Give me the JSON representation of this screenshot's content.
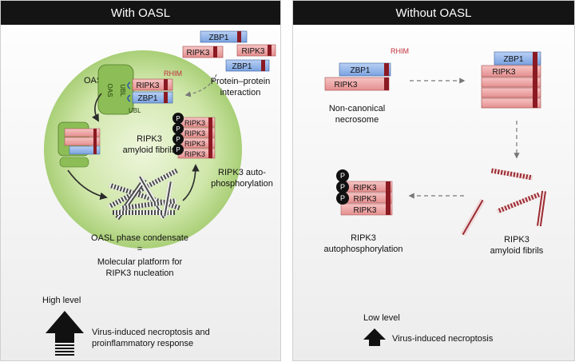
{
  "left": {
    "title": "With OASL",
    "zbp1": "ZBP1",
    "ripk3": "RIPK3",
    "oasl": "OASL",
    "rhim": "RHIM",
    "oas_domain": "OAS",
    "ubl_domain": "UBL",
    "ubl_bottom": "UBL",
    "protein_interaction": [
      "Protein–protein",
      "interaction"
    ],
    "fibrils": [
      "RIPK3",
      "amyloid fibrils"
    ],
    "autophos": [
      "RIPK3 auto-",
      "phosphorylation"
    ],
    "phospho": "P",
    "caption": [
      "OASL phase condensate",
      "=",
      "Molecular platform for",
      "RIPK3 nucleation"
    ],
    "level": "High level",
    "outcome": [
      "Virus-induced necroptosis and",
      "proinflammatory response"
    ]
  },
  "right": {
    "title": "Without OASL",
    "rhim": "RHIM",
    "zbp1": "ZBP1",
    "ripk3": "RIPK3",
    "necrosome": [
      "Non-canonical",
      "necrosome"
    ],
    "autophos": [
      "RIPK3",
      "autophosphorylation"
    ],
    "fibrils": [
      "RIPK3",
      "amyloid fibrils"
    ],
    "phospho": "P",
    "level": "Low level",
    "outcome": "Virus-induced necroptosis"
  },
  "colors": {
    "zbp1": "#8fb3e8",
    "ripk3": "#ef9c9c",
    "rhim": "#8b1a22",
    "condensate": "#cde6a8",
    "header": "#141414"
  }
}
